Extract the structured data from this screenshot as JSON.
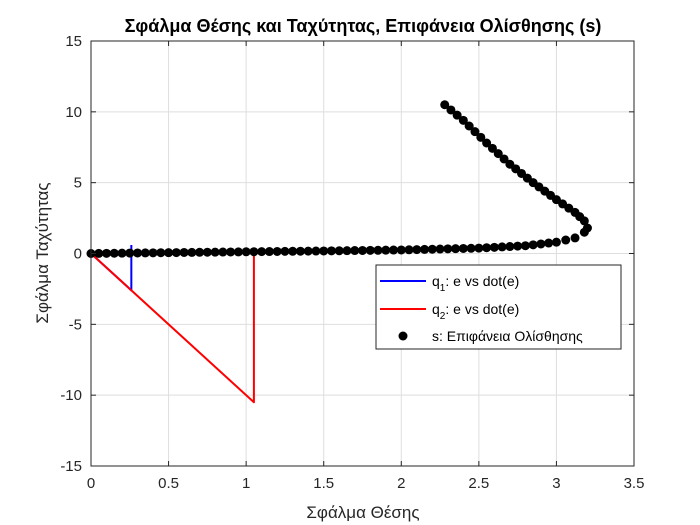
{
  "chart_data": {
    "type": "line",
    "title": "Σφάλμα Θέσης και Ταχύτητας, Επιφάνεια Ολίσθησης (s)",
    "xlabel": "Σφάλμα Θέσης",
    "ylabel": "Σφάλμα Ταχύτητας",
    "xlim": [
      0,
      3.5
    ],
    "ylim": [
      -15,
      15
    ],
    "xticks": [
      0,
      0.5,
      1,
      1.5,
      2,
      2.5,
      3,
      3.5
    ],
    "xtick_labels": [
      "0",
      "0.5",
      "1",
      "1.5",
      "2",
      "2.5",
      "3",
      "3.5"
    ],
    "yticks": [
      -15,
      -10,
      -5,
      0,
      5,
      10,
      15
    ],
    "ytick_labels": [
      "-15",
      "-10",
      "-5",
      "0",
      "5",
      "10",
      "15"
    ],
    "grid": true,
    "legend_position": "right",
    "series": [
      {
        "name": "q1: e vs dot(e)",
        "legend_main": "q",
        "legend_sub": "1",
        "legend_rest": ": e vs dot(e)",
        "style": "line",
        "color": "#0000ff",
        "points": [
          [
            0.26,
            0.6
          ],
          [
            0.26,
            -2.6
          ],
          [
            0.0,
            0.0
          ]
        ]
      },
      {
        "name": "q2: e vs dot(e)",
        "legend_main": "q",
        "legend_sub": "2",
        "legend_rest": ": e vs dot(e)",
        "style": "line",
        "color": "#ff0000",
        "points": [
          [
            1.05,
            0.0
          ],
          [
            1.05,
            -10.5
          ],
          [
            0.0,
            0.0
          ]
        ]
      },
      {
        "name": "s: Επιφάνεια Ολίσθησης",
        "style": "markers",
        "color": "#000000",
        "points": [
          [
            0.0,
            0.0
          ],
          [
            0.5,
            0.06
          ],
          [
            1.0,
            0.12
          ],
          [
            1.5,
            0.18
          ],
          [
            2.0,
            0.25
          ],
          [
            2.5,
            0.38
          ],
          [
            2.8,
            0.55
          ],
          [
            3.0,
            0.8
          ],
          [
            3.12,
            1.1
          ],
          [
            3.18,
            1.5
          ],
          [
            3.2,
            1.8
          ],
          [
            3.18,
            2.3
          ],
          [
            3.12,
            2.9
          ],
          [
            3.0,
            3.8
          ],
          [
            2.85,
            5.0
          ],
          [
            2.7,
            6.3
          ],
          [
            2.55,
            7.8
          ],
          [
            2.4,
            9.4
          ],
          [
            2.28,
            10.5
          ]
        ]
      }
    ]
  },
  "colors": {
    "axis": "#262626",
    "grid": "#dedede",
    "legend_border": "#262626"
  }
}
